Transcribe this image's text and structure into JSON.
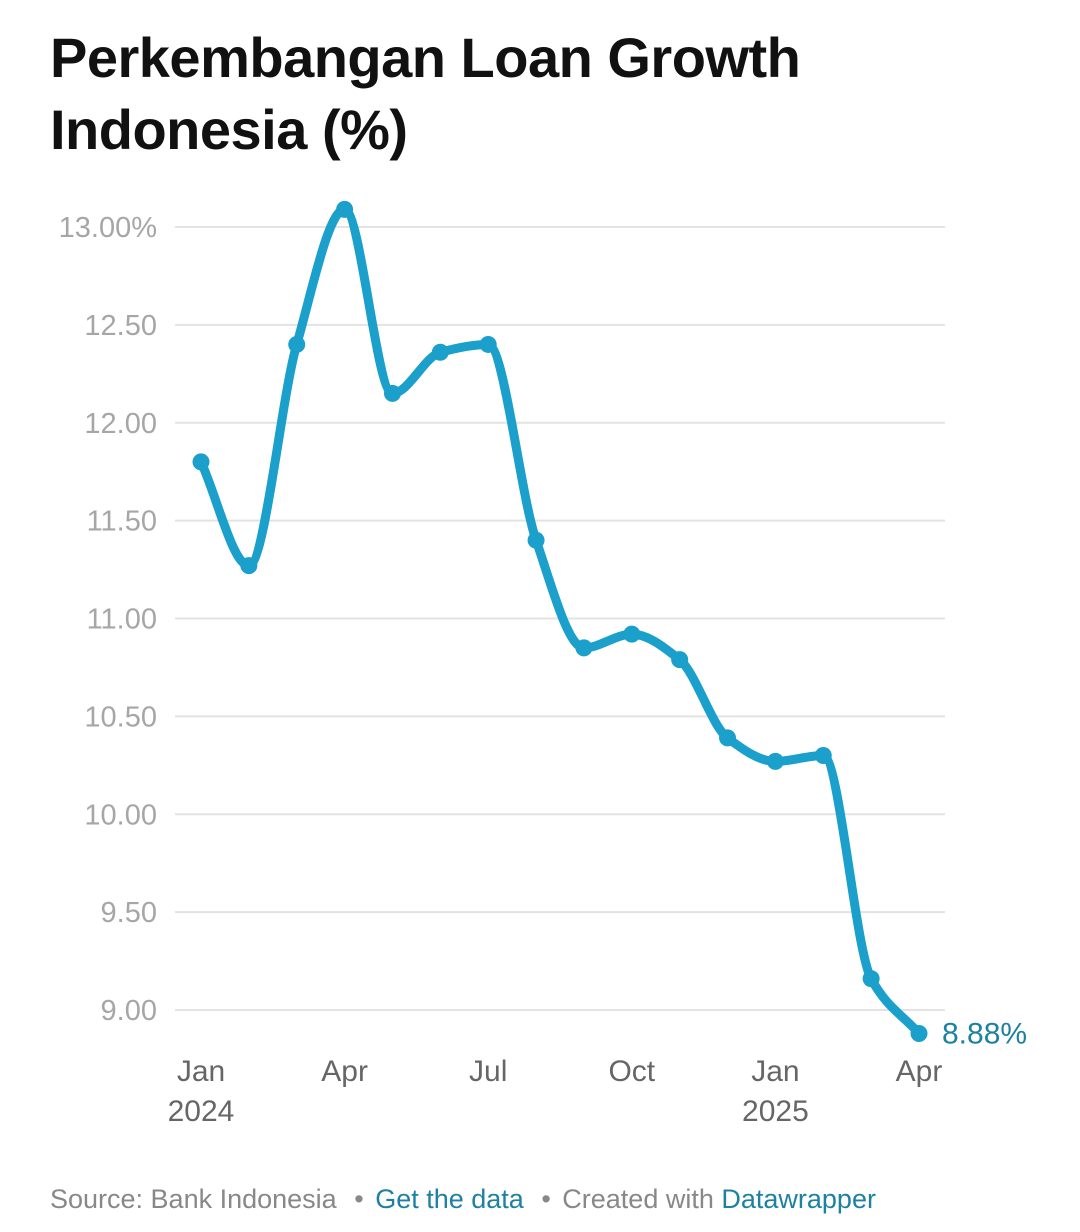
{
  "title": "Perkembangan Loan Growth Indonesia (%)",
  "colors": {
    "line": "#1b9fcb",
    "last_label": "#1d81a2",
    "grid": "#e3e3e3",
    "tick_text": "#a6a6a6",
    "x_tick_text": "#666666"
  },
  "chart_data": {
    "type": "line",
    "x": [
      "2024-01",
      "2024-02",
      "2024-03",
      "2024-04",
      "2024-05",
      "2024-06",
      "2024-07",
      "2024-08",
      "2024-09",
      "2024-10",
      "2024-11",
      "2024-12",
      "2025-01",
      "2025-02",
      "2025-03",
      "2025-04"
    ],
    "series": [
      {
        "values": [
          11.8,
          11.27,
          12.4,
          13.09,
          12.15,
          12.36,
          12.4,
          11.4,
          10.85,
          10.92,
          10.79,
          10.39,
          10.27,
          10.3,
          9.16,
          8.88
        ]
      }
    ],
    "ylim": [
      9.0,
      13.0
    ],
    "y_ticks": [
      {
        "value": 13.0,
        "label": "13.00%"
      },
      {
        "value": 12.5,
        "label": "12.50"
      },
      {
        "value": 12.0,
        "label": "12.00"
      },
      {
        "value": 11.5,
        "label": "11.50"
      },
      {
        "value": 11.0,
        "label": "11.00"
      },
      {
        "value": 10.5,
        "label": "10.50"
      },
      {
        "value": 10.0,
        "label": "10.00"
      },
      {
        "value": 9.5,
        "label": "9.50"
      },
      {
        "value": 9.0,
        "label": "9.00"
      }
    ],
    "x_ticks": [
      {
        "index": 0,
        "label": "Jan",
        "sublabel": "2024"
      },
      {
        "index": 3,
        "label": "Apr",
        "sublabel": ""
      },
      {
        "index": 6,
        "label": "Jul",
        "sublabel": ""
      },
      {
        "index": 9,
        "label": "Oct",
        "sublabel": ""
      },
      {
        "index": 12,
        "label": "Jan",
        "sublabel": "2025"
      },
      {
        "index": 15,
        "label": "Apr",
        "sublabel": ""
      }
    ],
    "last_value_label": "8.88%",
    "grid": true,
    "legend": "none"
  },
  "footer": {
    "source": "Source: Bank Indonesia",
    "separator": "•",
    "get_data": "Get the data",
    "created_with": "Created with",
    "tool": "Datawrapper"
  }
}
